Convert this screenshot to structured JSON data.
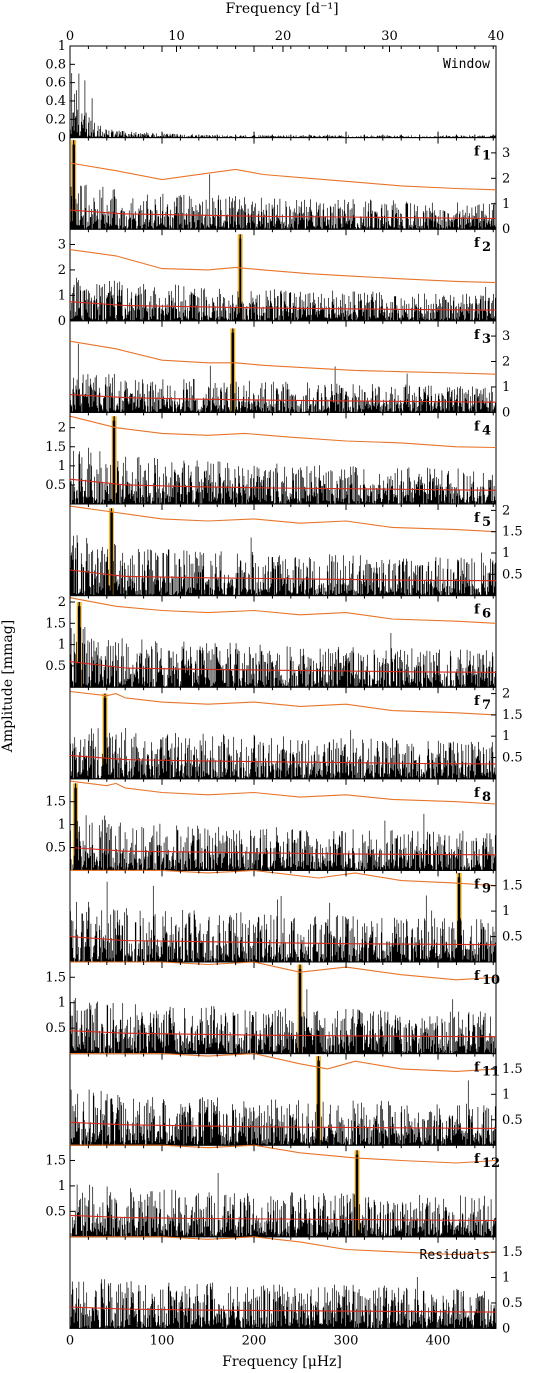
{
  "chart_data": {
    "type": "line",
    "title": "",
    "top_axis": {
      "label": "Frequency [d⁻¹]",
      "ticks": [
        "0",
        "10",
        "20",
        "30",
        "40"
      ],
      "xlim": [
        0,
        40
      ]
    },
    "bottom_axis": {
      "label": "Frequency [μHz]",
      "ticks": [
        "0",
        "100",
        "200",
        "300",
        "400"
      ],
      "xlim": [
        0,
        463
      ]
    },
    "ylabel": "Amplitude [mmag]",
    "colors": {
      "spectrum": "#000000",
      "significance_upper": "#e8752a",
      "noise_lower": "#d42a1c",
      "highlight": "#f5b82e"
    },
    "panels": [
      {
        "label": "Window",
        "sub": "",
        "ylim": [
          0,
          1
        ],
        "yticks": [
          "0",
          "0.2",
          "0.4",
          "0.6",
          "0.8",
          "1"
        ],
        "ytick_side": "left",
        "peak_uHz": null,
        "peak_amp": null,
        "upper": [],
        "lower": []
      },
      {
        "label": "f",
        "sub": "1",
        "ylim": [
          0,
          3.6
        ],
        "yticks": [
          "0",
          "1",
          "2",
          "3"
        ],
        "ytick_side": "right",
        "peak_uHz": 4,
        "peak_amp": 3.5,
        "upper": [
          [
            0,
            2.6
          ],
          [
            50,
            2.3
          ],
          [
            100,
            1.95
          ],
          [
            150,
            2.2
          ],
          [
            180,
            2.35
          ],
          [
            210,
            2.15
          ],
          [
            260,
            2.0
          ],
          [
            310,
            1.85
          ],
          [
            360,
            1.7
          ],
          [
            420,
            1.6
          ],
          [
            463,
            1.55
          ]
        ],
        "lower": [
          [
            0,
            0.75
          ],
          [
            60,
            0.6
          ],
          [
            140,
            0.55
          ],
          [
            220,
            0.5
          ],
          [
            300,
            0.48
          ],
          [
            380,
            0.45
          ],
          [
            463,
            0.42
          ]
        ]
      },
      {
        "label": "f",
        "sub": "2",
        "ylim": [
          0,
          3.6
        ],
        "yticks": [
          "0",
          "1",
          "2",
          "3"
        ],
        "ytick_side": "left",
        "peak_uHz": 185,
        "peak_amp": 3.4,
        "upper": [
          [
            0,
            2.8
          ],
          [
            50,
            2.55
          ],
          [
            100,
            2.05
          ],
          [
            150,
            2.0
          ],
          [
            180,
            2.1
          ],
          [
            210,
            2.0
          ],
          [
            260,
            1.85
          ],
          [
            310,
            1.75
          ],
          [
            360,
            1.65
          ],
          [
            420,
            1.55
          ],
          [
            463,
            1.5
          ]
        ],
        "lower": [
          [
            0,
            0.75
          ],
          [
            60,
            0.6
          ],
          [
            140,
            0.55
          ],
          [
            220,
            0.5
          ],
          [
            300,
            0.47
          ],
          [
            380,
            0.44
          ],
          [
            463,
            0.42
          ]
        ]
      },
      {
        "label": "f",
        "sub": "3",
        "ylim": [
          0,
          3.6
        ],
        "yticks": [
          "0",
          "1",
          "2",
          "3"
        ],
        "ytick_side": "right",
        "peak_uHz": 177,
        "peak_amp": 3.3,
        "upper": [
          [
            0,
            2.8
          ],
          [
            50,
            2.5
          ],
          [
            100,
            2.05
          ],
          [
            150,
            1.95
          ],
          [
            180,
            1.95
          ],
          [
            210,
            1.85
          ],
          [
            260,
            1.75
          ],
          [
            310,
            1.65
          ],
          [
            360,
            1.6
          ],
          [
            420,
            1.55
          ],
          [
            463,
            1.5
          ]
        ],
        "lower": [
          [
            0,
            0.7
          ],
          [
            60,
            0.58
          ],
          [
            140,
            0.52
          ],
          [
            220,
            0.48
          ],
          [
            300,
            0.45
          ],
          [
            380,
            0.43
          ],
          [
            463,
            0.4
          ]
        ]
      },
      {
        "label": "f",
        "sub": "4",
        "ylim": [
          0,
          2.4
        ],
        "yticks": [
          "0.5",
          "1",
          "1.5",
          "2"
        ],
        "ytick_side": "left",
        "peak_uHz": 48,
        "peak_amp": 2.3,
        "upper": [
          [
            0,
            2.3
          ],
          [
            50,
            2.0
          ],
          [
            100,
            1.85
          ],
          [
            150,
            1.8
          ],
          [
            190,
            1.85
          ],
          [
            240,
            1.75
          ],
          [
            300,
            1.65
          ],
          [
            360,
            1.6
          ],
          [
            420,
            1.5
          ],
          [
            463,
            1.48
          ]
        ],
        "lower": [
          [
            0,
            0.65
          ],
          [
            60,
            0.5
          ],
          [
            140,
            0.45
          ],
          [
            220,
            0.42
          ],
          [
            300,
            0.4
          ],
          [
            380,
            0.38
          ],
          [
            463,
            0.36
          ]
        ]
      },
      {
        "label": "f",
        "sub": "5",
        "ylim": [
          0,
          2.15
        ],
        "yticks": [
          "0.5",
          "1",
          "1.5",
          "2"
        ],
        "ytick_side": "right",
        "peak_uHz": 45,
        "peak_amp": 2.05,
        "upper": [
          [
            0,
            2.1
          ],
          [
            50,
            1.95
          ],
          [
            100,
            1.8
          ],
          [
            150,
            1.75
          ],
          [
            200,
            1.8
          ],
          [
            250,
            1.7
          ],
          [
            300,
            1.75
          ],
          [
            350,
            1.6
          ],
          [
            420,
            1.55
          ],
          [
            463,
            1.5
          ]
        ],
        "lower": [
          [
            0,
            0.6
          ],
          [
            60,
            0.45
          ],
          [
            140,
            0.42
          ],
          [
            220,
            0.4
          ],
          [
            300,
            0.38
          ],
          [
            380,
            0.36
          ],
          [
            463,
            0.35
          ]
        ]
      },
      {
        "label": "f",
        "sub": "6",
        "ylim": [
          0,
          2.15
        ],
        "yticks": [
          "0.5",
          "1",
          "1.5",
          "2"
        ],
        "ytick_side": "left",
        "peak_uHz": 10,
        "peak_amp": 2.0,
        "upper": [
          [
            0,
            2.1
          ],
          [
            50,
            1.9
          ],
          [
            100,
            1.8
          ],
          [
            150,
            1.75
          ],
          [
            200,
            1.8
          ],
          [
            250,
            1.7
          ],
          [
            300,
            1.75
          ],
          [
            350,
            1.6
          ],
          [
            420,
            1.55
          ],
          [
            463,
            1.5
          ]
        ],
        "lower": [
          [
            0,
            0.6
          ],
          [
            60,
            0.45
          ],
          [
            140,
            0.42
          ],
          [
            220,
            0.4
          ],
          [
            300,
            0.38
          ],
          [
            380,
            0.36
          ],
          [
            463,
            0.35
          ]
        ]
      },
      {
        "label": "f",
        "sub": "7",
        "ylim": [
          0,
          2.15
        ],
        "yticks": [
          "0.5",
          "1",
          "1.5",
          "2"
        ],
        "ytick_side": "right",
        "peak_uHz": 38,
        "peak_amp": 2.0,
        "upper": [
          [
            0,
            2.05
          ],
          [
            40,
            1.95
          ],
          [
            50,
            2.0
          ],
          [
            60,
            1.9
          ],
          [
            100,
            1.8
          ],
          [
            150,
            1.75
          ],
          [
            200,
            1.8
          ],
          [
            250,
            1.7
          ],
          [
            300,
            1.75
          ],
          [
            350,
            1.6
          ],
          [
            420,
            1.55
          ],
          [
            463,
            1.5
          ]
        ],
        "lower": [
          [
            0,
            0.55
          ],
          [
            60,
            0.45
          ],
          [
            140,
            0.42
          ],
          [
            220,
            0.4
          ],
          [
            300,
            0.38
          ],
          [
            380,
            0.36
          ],
          [
            463,
            0.35
          ]
        ]
      },
      {
        "label": "f",
        "sub": "8",
        "ylim": [
          0,
          2.0
        ],
        "yticks": [
          "0.5",
          "1",
          "1.5"
        ],
        "ytick_side": "left",
        "peak_uHz": 6,
        "peak_amp": 1.9,
        "upper": [
          [
            0,
            1.95
          ],
          [
            40,
            1.85
          ],
          [
            50,
            1.9
          ],
          [
            60,
            1.8
          ],
          [
            100,
            1.7
          ],
          [
            150,
            1.65
          ],
          [
            200,
            1.7
          ],
          [
            250,
            1.6
          ],
          [
            300,
            1.65
          ],
          [
            350,
            1.55
          ],
          [
            420,
            1.5
          ],
          [
            463,
            1.45
          ]
        ],
        "lower": [
          [
            0,
            0.5
          ],
          [
            60,
            0.42
          ],
          [
            140,
            0.4
          ],
          [
            220,
            0.38
          ],
          [
            300,
            0.36
          ],
          [
            380,
            0.35
          ],
          [
            463,
            0.34
          ]
        ]
      },
      {
        "label": "f",
        "sub": "9",
        "ylim": [
          0,
          1.8
        ],
        "yticks": [
          "0.5",
          "1",
          "1.5"
        ],
        "ytick_side": "right",
        "peak_uHz": 423,
        "peak_amp": 1.75,
        "upper": [
          [
            0,
            1.9
          ],
          [
            100,
            1.8
          ],
          [
            150,
            1.75
          ],
          [
            200,
            1.8
          ],
          [
            270,
            1.65
          ],
          [
            310,
            1.75
          ],
          [
            360,
            1.6
          ],
          [
            420,
            1.55
          ],
          [
            463,
            1.5
          ]
        ],
        "lower": [
          [
            0,
            0.5
          ],
          [
            60,
            0.42
          ],
          [
            140,
            0.4
          ],
          [
            220,
            0.38
          ],
          [
            300,
            0.36
          ],
          [
            380,
            0.35
          ],
          [
            463,
            0.34
          ]
        ]
      },
      {
        "label": "f",
        "sub": "10",
        "ylim": [
          0,
          1.8
        ],
        "yticks": [
          "0.5",
          "1",
          "1.5"
        ],
        "ytick_side": "left",
        "peak_uHz": 250,
        "peak_amp": 1.75,
        "upper": [
          [
            0,
            1.9
          ],
          [
            100,
            1.8
          ],
          [
            150,
            1.75
          ],
          [
            200,
            1.8
          ],
          [
            250,
            1.6
          ],
          [
            300,
            1.7
          ],
          [
            360,
            1.55
          ],
          [
            420,
            1.45
          ],
          [
            463,
            1.5
          ]
        ],
        "lower": [
          [
            0,
            0.45
          ],
          [
            60,
            0.4
          ],
          [
            140,
            0.38
          ],
          [
            220,
            0.36
          ],
          [
            300,
            0.35
          ],
          [
            380,
            0.34
          ],
          [
            463,
            0.33
          ]
        ]
      },
      {
        "label": "f",
        "sub": "11",
        "ylim": [
          0,
          1.8
        ],
        "yticks": [
          "0.5",
          "1",
          "1.5"
        ],
        "ytick_side": "right",
        "peak_uHz": 270,
        "peak_amp": 1.75,
        "upper": [
          [
            0,
            1.9
          ],
          [
            100,
            1.8
          ],
          [
            150,
            1.75
          ],
          [
            200,
            1.8
          ],
          [
            250,
            1.6
          ],
          [
            280,
            1.5
          ],
          [
            310,
            1.65
          ],
          [
            360,
            1.5
          ],
          [
            420,
            1.45
          ],
          [
            463,
            1.5
          ]
        ],
        "lower": [
          [
            0,
            0.45
          ],
          [
            60,
            0.4
          ],
          [
            140,
            0.38
          ],
          [
            220,
            0.36
          ],
          [
            300,
            0.35
          ],
          [
            380,
            0.34
          ],
          [
            463,
            0.33
          ]
        ]
      },
      {
        "label": "f",
        "sub": "12",
        "ylim": [
          0,
          1.8
        ],
        "yticks": [
          "0.5",
          "1",
          "1.5"
        ],
        "ytick_side": "left",
        "peak_uHz": 312,
        "peak_amp": 1.7,
        "upper": [
          [
            0,
            1.9
          ],
          [
            100,
            1.8
          ],
          [
            150,
            1.75
          ],
          [
            200,
            1.8
          ],
          [
            250,
            1.65
          ],
          [
            310,
            1.55
          ],
          [
            360,
            1.5
          ],
          [
            420,
            1.45
          ],
          [
            463,
            1.5
          ]
        ],
        "lower": [
          [
            0,
            0.42
          ],
          [
            60,
            0.38
          ],
          [
            140,
            0.36
          ],
          [
            220,
            0.35
          ],
          [
            300,
            0.34
          ],
          [
            380,
            0.33
          ],
          [
            463,
            0.32
          ]
        ]
      },
      {
        "label": "Residuals",
        "sub": "",
        "ylim": [
          0,
          1.8
        ],
        "yticks": [
          "0",
          "0.5",
          "1",
          "1.5"
        ],
        "ytick_side": "right",
        "peak_uHz": null,
        "peak_amp": null,
        "upper": [
          [
            0,
            1.9
          ],
          [
            100,
            1.8
          ],
          [
            150,
            1.75
          ],
          [
            200,
            1.8
          ],
          [
            250,
            1.7
          ],
          [
            300,
            1.55
          ],
          [
            360,
            1.5
          ],
          [
            420,
            1.45
          ],
          [
            463,
            1.5
          ]
        ],
        "lower": [
          [
            0,
            0.42
          ],
          [
            60,
            0.38
          ],
          [
            140,
            0.36
          ],
          [
            220,
            0.35
          ],
          [
            300,
            0.34
          ],
          [
            380,
            0.33
          ],
          [
            463,
            0.32
          ]
        ]
      }
    ]
  }
}
